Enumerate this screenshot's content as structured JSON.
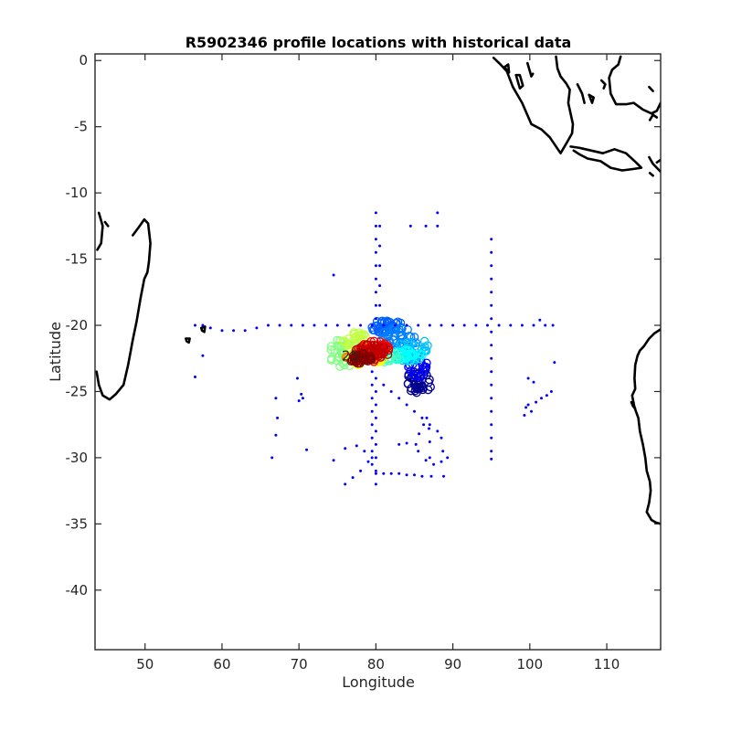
{
  "chart_data": {
    "type": "scatter",
    "title": "R5902346 profile locations with historical data",
    "xlabel": "Longitude",
    "ylabel": "Latitude",
    "xlim": [
      43.5,
      117
    ],
    "ylim": [
      -44.5,
      0.5
    ],
    "xticks": [
      50,
      60,
      70,
      80,
      90,
      100,
      110
    ],
    "yticks": [
      0,
      -5,
      -10,
      -15,
      -20,
      -25,
      -30,
      -35,
      -40
    ],
    "grid": false,
    "annotations": [
      {
        "text": "25",
        "x": 76.5,
        "y": -22.3
      }
    ],
    "colors": {
      "historical": "#0000ff",
      "float_track_colormap": [
        "#00008f",
        "#0000ff",
        "#0080ff",
        "#00ffff",
        "#80ff80",
        "#ffff00",
        "#ff8000",
        "#ff0000",
        "#800000"
      ],
      "coastline": "#000000"
    },
    "series": [
      {
        "marker": "dot",
        "points": [
          [
            56.5,
            -20
          ],
          [
            57.5,
            -20
          ],
          [
            58.5,
            -20.2
          ],
          [
            60,
            -20.4
          ],
          [
            61.5,
            -20.4
          ],
          [
            63,
            -20.4
          ],
          [
            64.5,
            -20.2
          ],
          [
            66,
            -20
          ],
          [
            67.5,
            -20
          ],
          [
            69,
            -20
          ],
          [
            70.5,
            -20
          ],
          [
            72,
            -20
          ],
          [
            73.5,
            -20
          ],
          [
            75,
            -20
          ],
          [
            76.5,
            -20
          ],
          [
            78,
            -20
          ],
          [
            79.5,
            -20
          ],
          [
            81,
            -20
          ],
          [
            82.5,
            -20
          ],
          [
            84,
            -20
          ],
          [
            85.5,
            -20
          ],
          [
            87,
            -20
          ],
          [
            88.5,
            -20
          ],
          [
            90,
            -20
          ],
          [
            91.5,
            -20
          ],
          [
            93,
            -20
          ],
          [
            94.5,
            -20
          ],
          [
            96,
            -20
          ],
          [
            97.5,
            -20
          ],
          [
            99,
            -20
          ],
          [
            100.5,
            -20
          ],
          [
            102,
            -20
          ],
          [
            103,
            -20
          ],
          [
            80,
            -11.5
          ],
          [
            80,
            -12.5
          ],
          [
            80,
            -13.5
          ],
          [
            80,
            -14.5
          ],
          [
            80,
            -15.5
          ],
          [
            80,
            -16.5
          ],
          [
            80,
            -17.5
          ],
          [
            80,
            -18.5
          ],
          [
            80,
            -19.5
          ],
          [
            80,
            -24
          ],
          [
            80,
            -25
          ],
          [
            80,
            -26
          ],
          [
            80,
            -27
          ],
          [
            80,
            -28
          ],
          [
            80,
            -29
          ],
          [
            80,
            -30
          ],
          [
            80,
            -31
          ],
          [
            80,
            -32
          ],
          [
            79.5,
            -23.5
          ],
          [
            79.5,
            -24.5
          ],
          [
            79.5,
            -25.5
          ],
          [
            79.5,
            -26.5
          ],
          [
            79.5,
            -27.5
          ],
          [
            79.5,
            -28.5
          ],
          [
            79.5,
            -29.5
          ],
          [
            79.5,
            -30.5
          ],
          [
            80.5,
            -12.5
          ],
          [
            80.5,
            -14
          ],
          [
            80.5,
            -15.5
          ],
          [
            80.5,
            -17
          ],
          [
            80.5,
            -18.5
          ],
          [
            95,
            -13.5
          ],
          [
            95,
            -14.5
          ],
          [
            95,
            -15.5
          ],
          [
            95,
            -16.5
          ],
          [
            95,
            -17.5
          ],
          [
            95,
            -18.5
          ],
          [
            95,
            -19.5
          ],
          [
            95,
            -20.5
          ],
          [
            95,
            -21.5
          ],
          [
            95,
            -22.5
          ],
          [
            95,
            -23.5
          ],
          [
            95,
            -24.5
          ],
          [
            95,
            -25.5
          ],
          [
            95,
            -26.5
          ],
          [
            95,
            -27.5
          ],
          [
            95,
            -28.5
          ],
          [
            95,
            -29.5
          ],
          [
            95,
            -30.1
          ],
          [
            84.5,
            -12.5
          ],
          [
            86.5,
            -12.5
          ],
          [
            88,
            -11.5
          ],
          [
            88,
            -12.5
          ],
          [
            74.5,
            -16.2
          ],
          [
            81,
            -24.5
          ],
          [
            82,
            -25
          ],
          [
            83,
            -25.5
          ],
          [
            84,
            -26
          ],
          [
            85,
            -26.5
          ],
          [
            86,
            -27
          ],
          [
            87,
            -27.5
          ],
          [
            88,
            -28
          ],
          [
            88.5,
            -28.5
          ],
          [
            88.7,
            -29.5
          ],
          [
            88.5,
            -30.3
          ],
          [
            87.5,
            -30.5
          ],
          [
            86.5,
            -30.2
          ],
          [
            85.5,
            -29.5
          ],
          [
            85.2,
            -29
          ],
          [
            85.6,
            -28.2
          ],
          [
            86.2,
            -27.5
          ],
          [
            86.6,
            -27
          ],
          [
            86.9,
            -27.8
          ],
          [
            87,
            -28.8
          ],
          [
            87,
            -30
          ],
          [
            76,
            -32
          ],
          [
            77,
            -31.5
          ],
          [
            78,
            -31
          ],
          [
            79,
            -30.3
          ],
          [
            79.5,
            -30
          ],
          [
            80,
            -31.2
          ],
          [
            81,
            -31.2
          ],
          [
            82,
            -31.2
          ],
          [
            83,
            -31.2
          ],
          [
            84,
            -31.3
          ],
          [
            85,
            -31.3
          ],
          [
            86,
            -31.4
          ],
          [
            87.2,
            -31.4
          ],
          [
            88.8,
            -31.4
          ],
          [
            89.3,
            -30
          ],
          [
            66.5,
            -30
          ],
          [
            67,
            -28.3
          ],
          [
            67.2,
            -27
          ],
          [
            67,
            -25.5
          ],
          [
            69.8,
            -24
          ],
          [
            70,
            -25.7
          ],
          [
            70.3,
            -25.2
          ],
          [
            70.5,
            -25.5
          ],
          [
            71,
            -29.4
          ],
          [
            74.5,
            -30.2
          ],
          [
            76,
            -29.3
          ],
          [
            77.5,
            -29.1
          ],
          [
            78.5,
            -29.5
          ],
          [
            83,
            -29
          ],
          [
            84,
            -28.9
          ],
          [
            56.5,
            -23.9
          ],
          [
            57.5,
            -22.3
          ],
          [
            99.3,
            -26.8
          ],
          [
            99.5,
            -26.2
          ],
          [
            99.8,
            -26
          ],
          [
            100.2,
            -26.5
          ],
          [
            100.8,
            -25.8
          ],
          [
            101.5,
            -25.5
          ],
          [
            102.2,
            -25.3
          ],
          [
            102.8,
            -25
          ],
          [
            99.8,
            -24
          ],
          [
            100.5,
            -24.3
          ],
          [
            103.2,
            -22.8
          ],
          [
            101.3,
            -19.6
          ]
        ]
      }
    ],
    "float_track_groups": [
      {
        "cx": 85.7,
        "cy": -24.2,
        "rx": 1.7,
        "ry": 1.0,
        "color": "#00008f",
        "n": 40
      },
      {
        "cx": 85.5,
        "cy": -23.2,
        "rx": 1.3,
        "ry": 0.7,
        "color": "#0000ff",
        "n": 20
      },
      {
        "cx": 81.5,
        "cy": -20.1,
        "rx": 2.2,
        "ry": 0.5,
        "color": "#0060ff",
        "n": 40
      },
      {
        "cx": 83,
        "cy": -21,
        "rx": 2.5,
        "ry": 0.8,
        "color": "#0080ff",
        "n": 40
      },
      {
        "cx": 84.5,
        "cy": -21.8,
        "rx": 2.3,
        "ry": 1.0,
        "color": "#00bfff",
        "n": 35
      },
      {
        "cx": 83.5,
        "cy": -22.3,
        "rx": 2.8,
        "ry": 0.5,
        "color": "#00ffff",
        "n": 30
      },
      {
        "cx": 81,
        "cy": -22.4,
        "rx": 2.5,
        "ry": 0.4,
        "color": "#40ffbf",
        "n": 25
      },
      {
        "cx": 76,
        "cy": -22.1,
        "rx": 2.2,
        "ry": 1.1,
        "color": "#80ff80",
        "n": 35
      },
      {
        "cx": 77.5,
        "cy": -21.2,
        "rx": 1.8,
        "ry": 0.7,
        "color": "#bfff40",
        "n": 30
      },
      {
        "cx": 78.5,
        "cy": -22.5,
        "rx": 2.5,
        "ry": 0.5,
        "color": "#ffff00",
        "n": 30
      },
      {
        "cx": 78.2,
        "cy": -22.3,
        "rx": 2.2,
        "ry": 0.5,
        "color": "#ff8000",
        "n": 30
      },
      {
        "cx": 79.8,
        "cy": -21.9,
        "rx": 2.0,
        "ry": 0.9,
        "color": "#ff0000",
        "n": 45
      },
      {
        "cx": 79.5,
        "cy": -22,
        "rx": 2.5,
        "ry": 0.6,
        "color": "#c00000",
        "n": 40
      },
      {
        "cx": 78,
        "cy": -22.5,
        "rx": 1.5,
        "ry": 0.4,
        "color": "#800000",
        "n": 30
      }
    ],
    "coastlines": [
      [
        [
          44,
          -11.5
        ],
        [
          44.5,
          -12.5
        ],
        [
          44.3,
          -13.8
        ],
        [
          43.8,
          -14.3
        ]
      ],
      [
        [
          44.8,
          -12.2
        ],
        [
          45.2,
          -12.5
        ]
      ],
      [
        [
          48.4,
          -13.2
        ],
        [
          49.3,
          -12.5
        ],
        [
          49.9,
          -12
        ],
        [
          50.4,
          -12.3
        ],
        [
          50.7,
          -13.8
        ],
        [
          50.5,
          -15.2
        ],
        [
          50.3,
          -16
        ],
        [
          49.9,
          -16.5
        ],
        [
          49.4,
          -18
        ],
        [
          48.9,
          -19.7
        ],
        [
          48.4,
          -21.1
        ],
        [
          47.8,
          -23
        ],
        [
          47.2,
          -24.5
        ],
        [
          46.2,
          -25.2
        ],
        [
          45.4,
          -25.6
        ],
        [
          44.5,
          -25.3
        ],
        [
          44,
          -24.5
        ],
        [
          43.7,
          -23.5
        ]
      ],
      [
        [
          57.3,
          -20.2
        ],
        [
          57.8,
          -20.1
        ],
        [
          57.7,
          -20.5
        ],
        [
          57.4,
          -20.4
        ],
        [
          57.3,
          -20.2
        ]
      ],
      [
        [
          55.3,
          -21
        ],
        [
          55.8,
          -21
        ],
        [
          55.7,
          -21.3
        ],
        [
          55.4,
          -21.2
        ],
        [
          55.3,
          -21
        ]
      ],
      [
        [
          95.3,
          0.2
        ],
        [
          96.2,
          -0.3
        ],
        [
          97,
          -0.8
        ],
        [
          97.8,
          -2
        ],
        [
          99,
          -3.2
        ],
        [
          100.2,
          -4.8
        ],
        [
          101.5,
          -5.2
        ],
        [
          102.6,
          -5.8
        ],
        [
          104,
          -7
        ],
        [
          104.8,
          -6.2
        ],
        [
          105.5,
          -5.5
        ],
        [
          105.6,
          -4.8
        ],
        [
          105,
          -3.2
        ],
        [
          105.2,
          -2.2
        ],
        [
          104.7,
          -1.7
        ],
        [
          104,
          -1.2
        ],
        [
          103.6,
          -0.6
        ],
        [
          103.4,
          0.3
        ]
      ],
      [
        [
          98.2,
          -1.1
        ],
        [
          98.7,
          -2.1
        ],
        [
          99.1,
          -1.9
        ],
        [
          98.7,
          -1.1
        ],
        [
          98.2,
          -1.1
        ]
      ],
      [
        [
          99.7,
          -0.2
        ],
        [
          100.2,
          -1.2
        ],
        [
          100.4,
          -1
        ]
      ],
      [
        [
          96.7,
          -0.5
        ],
        [
          97.3,
          -0.9
        ],
        [
          97.2,
          -0.3
        ],
        [
          96.7,
          -0.5
        ]
      ],
      [
        [
          105.3,
          -6.5
        ],
        [
          106.5,
          -6.6
        ],
        [
          108,
          -6.8
        ],
        [
          109.5,
          -7
        ],
        [
          111,
          -6.7
        ],
        [
          112.5,
          -7
        ],
        [
          113.8,
          -7.7
        ],
        [
          114.5,
          -8.1
        ],
        [
          113.3,
          -8.2
        ],
        [
          112,
          -8.3
        ],
        [
          110.5,
          -8.1
        ],
        [
          109.2,
          -7.6
        ],
        [
          107.5,
          -7.4
        ],
        [
          106.5,
          -7.1
        ],
        [
          105.7,
          -6.8
        ]
      ],
      [
        [
          111.8,
          0.3
        ],
        [
          111.5,
          -0.3
        ],
        [
          110.7,
          -0.7
        ],
        [
          110.3,
          -1.3
        ],
        [
          110.5,
          -2.5
        ],
        [
          111.2,
          -3.3
        ],
        [
          112.5,
          -3.3
        ],
        [
          113.5,
          -3.2
        ],
        [
          114.7,
          -3.7
        ],
        [
          115.8,
          -4
        ],
        [
          116.5,
          -3.8
        ],
        [
          117,
          -3.2
        ]
      ],
      [
        [
          109.3,
          -1.5
        ],
        [
          109.8,
          -1.8
        ],
        [
          109.6,
          -2.1
        ]
      ],
      [
        [
          106.2,
          -1.8
        ],
        [
          106.8,
          -2.5
        ],
        [
          107.1,
          -3.2
        ]
      ],
      [
        [
          107.7,
          -2.6
        ],
        [
          108.3,
          -2.8
        ],
        [
          108.1,
          -3.2
        ],
        [
          107.7,
          -2.6
        ]
      ],
      [
        [
          115.5,
          -7.3
        ],
        [
          116,
          -7.8
        ],
        [
          116.5,
          -8.1
        ],
        [
          117,
          -8.4
        ]
      ],
      [
        [
          115.6,
          -8.5
        ],
        [
          116,
          -8.7
        ]
      ],
      [
        [
          115.6,
          -4.5
        ],
        [
          116,
          -4.1
        ],
        [
          116.5,
          -4.3
        ]
      ],
      [
        [
          115.5,
          -2
        ],
        [
          116,
          -2.3
        ]
      ],
      [
        [
          117,
          -7.5
        ],
        [
          116.5,
          -7.7
        ]
      ],
      [
        [
          117,
          -20.3
        ],
        [
          116.2,
          -20.6
        ],
        [
          115.5,
          -21
        ],
        [
          114.8,
          -21.6
        ],
        [
          114.3,
          -21.9
        ],
        [
          114,
          -22.3
        ],
        [
          113.7,
          -23
        ],
        [
          113.6,
          -24
        ],
        [
          113.7,
          -24.8
        ],
        [
          113.3,
          -25.3
        ],
        [
          113.6,
          -26.2
        ],
        [
          114.1,
          -27
        ],
        [
          114.3,
          -28
        ],
        [
          114.7,
          -29
        ],
        [
          115,
          -30
        ],
        [
          115.2,
          -31
        ],
        [
          115.6,
          -31.8
        ],
        [
          115.7,
          -32.5
        ],
        [
          115.5,
          -33.4
        ],
        [
          115.2,
          -34.1
        ],
        [
          115.8,
          -34.7
        ],
        [
          116.4,
          -34.9
        ],
        [
          117,
          -35
        ]
      ],
      [
        [
          113.2,
          -25.8
        ],
        [
          113.4,
          -26.1
        ],
        [
          113.7,
          -26.3
        ],
        [
          113.3,
          -25.8
        ]
      ]
    ]
  }
}
